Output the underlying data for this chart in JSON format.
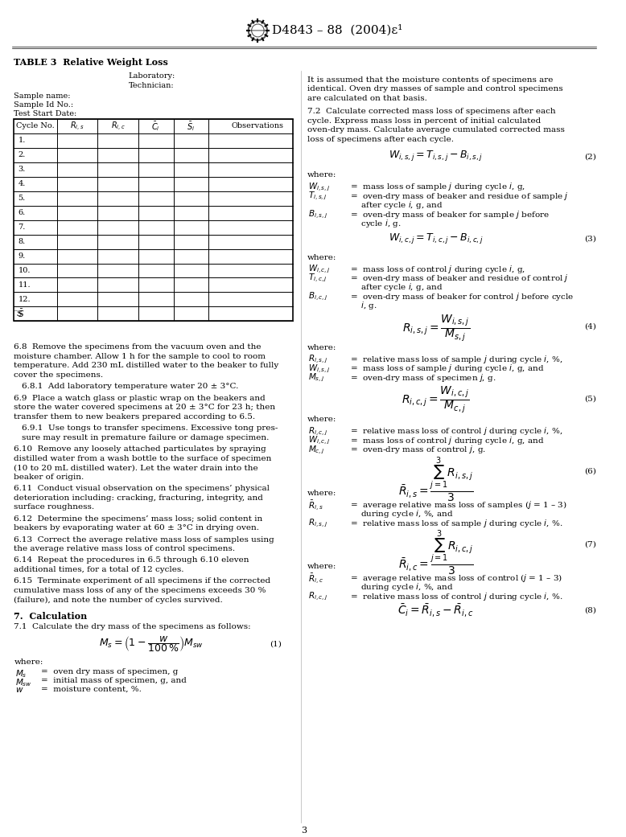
{
  "title": "D4843 – 88  (2004)ε¹",
  "page_number": "3",
  "background_color": "#ffffff",
  "table_title": "TABLE 3  Relative Weight Loss",
  "table_lab_line1": "Laboratory:",
  "table_lab_line2": "Technician:",
  "table_info_lines": [
    "Sample name:",
    "Sample Id No.:",
    "Test Start Date:"
  ],
  "table_headers": [
    "Cycle No.",
    "R̅_{i,s}",
    "R̅ _{i,c}",
    "C̅_{i}",
    "S̅ _{i}",
    "Observations"
  ],
  "table_rows": [
    "1.",
    "2.",
    "3.",
    "4.",
    "5.",
    "6.",
    "7.",
    "8.",
    "9.",
    "10.",
    "11.",
    "12.",
    "̅S"
  ],
  "left_col_text": [
    "6.8  Remove the specimens from the vacuum oven and the moisture chamber. Allow 1 h for the sample to cool to room temperature. Add 230 mL distilled water to the beaker to fully cover the specimens.",
    "6.8.1  Add laboratory temperature water 20 ± 3°C.",
    "6.9  Place a watch glass or plastic wrap on the beakers and store the water covered specimens at 20 ± 3°C for 23 h; then transfer them to new beakers prepared according to 6.5.",
    "6.9.1  Use tongs to transfer specimens. Excessive tong pressure may result in premature failure or damage specimen.",
    "6.10  Remove any loosely attached particulates by spraying distilled water from a wash bottle to the surface of specimen (10 to 20 mL distilled water). Let the water drain into the beaker of origin.",
    "6.11  Conduct visual observation on the specimens’ physical deterioration including: cracking, fracturing, integrity, and surface roughness.",
    "6.12  Determine the specimens’ mass loss; solid content in beakers by evaporating water at 60 ± 3°C in drying oven.",
    "6.13  Correct the average relative mass loss of samples using the average relative mass loss of control specimens.",
    "6.14  Repeat the procedures in 6.5 through 6.10 eleven additional times, for a total of 12 cycles.",
    "6.15  Terminate experiment of all specimens if the corrected cumulative mass loss of any of the specimens exceeds 30 % (failure), and note the number of cycles survived."
  ],
  "section7_header": "7.  Calculation",
  "section7_1": "7.1  Calculate the dry mass of the specimens as follows:",
  "right_col_text_top": "It is assumed that the moisture contents of specimens are identical. Oven dry masses of sample and control specimens are calculated on that basis.",
  "right_col_72": "7.2  Calculate corrected mass loss of specimens after each cycle. Express mass loss in percent of initial calculated oven-dry mass. Calculate average cumulated corrected mass loss of specimens after each cycle."
}
